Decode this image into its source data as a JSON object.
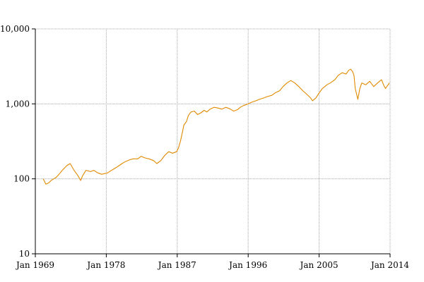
{
  "chart_data": {
    "type": "line",
    "title": "",
    "xlabel": "",
    "ylabel": "",
    "y_scale": "log",
    "ylim": [
      10,
      10000
    ],
    "xlim": [
      "1969-01",
      "2014-01"
    ],
    "grid": true,
    "legend": "none",
    "x_ticks": [
      "Jan 1969",
      "Jan 1978",
      "Jan 1987",
      "Jan 1996",
      "Jan 2005",
      "Jan 2014"
    ],
    "y_ticks": [
      "10",
      "100",
      "1,000",
      "10,000"
    ],
    "y_tick_values": [
      10,
      100,
      1000,
      10000
    ],
    "series": [
      {
        "color": "#e08a00",
        "points": [
          [
            "1970-01",
            100
          ],
          [
            "1970-05",
            85
          ],
          [
            "1970-09",
            88
          ],
          [
            "1971-01",
            95
          ],
          [
            "1971-05",
            100
          ],
          [
            "1971-09",
            105
          ],
          [
            "1972-01",
            115
          ],
          [
            "1972-06",
            130
          ],
          [
            "1973-01",
            150
          ],
          [
            "1973-06",
            160
          ],
          [
            "1973-12",
            130
          ],
          [
            "1974-06",
            110
          ],
          [
            "1974-10",
            95
          ],
          [
            "1975-01",
            110
          ],
          [
            "1975-06",
            130
          ],
          [
            "1976-01",
            125
          ],
          [
            "1976-06",
            130
          ],
          [
            "1976-12",
            120
          ],
          [
            "1977-06",
            115
          ],
          [
            "1978-03",
            120
          ],
          [
            "1978-09",
            130
          ],
          [
            "1979-06",
            145
          ],
          [
            "1980-01",
            160
          ],
          [
            "1980-06",
            170
          ],
          [
            "1981-01",
            180
          ],
          [
            "1981-06",
            185
          ],
          [
            "1982-01",
            185
          ],
          [
            "1982-06",
            200
          ],
          [
            "1982-12",
            190
          ],
          [
            "1983-06",
            185
          ],
          [
            "1984-01",
            175
          ],
          [
            "1984-06",
            160
          ],
          [
            "1984-12",
            175
          ],
          [
            "1985-06",
            205
          ],
          [
            "1985-12",
            230
          ],
          [
            "1986-06",
            220
          ],
          [
            "1986-12",
            230
          ],
          [
            "1987-03",
            260
          ],
          [
            "1987-06",
            320
          ],
          [
            "1987-09",
            420
          ],
          [
            "1987-11",
            520
          ],
          [
            "1988-03",
            580
          ],
          [
            "1988-06",
            700
          ],
          [
            "1988-10",
            780
          ],
          [
            "1989-03",
            800
          ],
          [
            "1989-08",
            720
          ],
          [
            "1990-01",
            760
          ],
          [
            "1990-06",
            820
          ],
          [
            "1990-10",
            780
          ],
          [
            "1991-03",
            850
          ],
          [
            "1991-09",
            900
          ],
          [
            "1992-03",
            880
          ],
          [
            "1992-09",
            850
          ],
          [
            "1993-03",
            900
          ],
          [
            "1993-09",
            860
          ],
          [
            "1994-03",
            800
          ],
          [
            "1994-09",
            840
          ],
          [
            "1995-01",
            900
          ],
          [
            "1995-06",
            950
          ],
          [
            "1996-01",
            1000
          ],
          [
            "1996-06",
            1050
          ],
          [
            "1997-01",
            1100
          ],
          [
            "1997-06",
            1150
          ],
          [
            "1998-01",
            1200
          ],
          [
            "1998-06",
            1250
          ],
          [
            "1999-01",
            1300
          ],
          [
            "1999-06",
            1400
          ],
          [
            "2000-01",
            1500
          ],
          [
            "2000-06",
            1700
          ],
          [
            "2000-12",
            1900
          ],
          [
            "2001-06",
            2050
          ],
          [
            "2001-12",
            1900
          ],
          [
            "2002-06",
            1700
          ],
          [
            "2002-12",
            1500
          ],
          [
            "2003-06",
            1350
          ],
          [
            "2003-12",
            1200
          ],
          [
            "2004-03",
            1100
          ],
          [
            "2004-08",
            1200
          ],
          [
            "2005-01",
            1400
          ],
          [
            "2005-06",
            1600
          ],
          [
            "2006-01",
            1800
          ],
          [
            "2006-06",
            1900
          ],
          [
            "2007-01",
            2100
          ],
          [
            "2007-06",
            2400
          ],
          [
            "2007-12",
            2600
          ],
          [
            "2008-06",
            2500
          ],
          [
            "2008-10",
            2800
          ],
          [
            "2009-01",
            2900
          ],
          [
            "2009-04",
            2700
          ],
          [
            "2009-06",
            2400
          ],
          [
            "2009-08",
            1600
          ],
          [
            "2009-10",
            1350
          ],
          [
            "2009-12",
            1150
          ],
          [
            "2010-03",
            1600
          ],
          [
            "2010-06",
            1900
          ],
          [
            "2010-12",
            1800
          ],
          [
            "2011-06",
            2000
          ],
          [
            "2011-12",
            1700
          ],
          [
            "2012-06",
            1900
          ],
          [
            "2012-12",
            2100
          ],
          [
            "2013-03",
            1800
          ],
          [
            "2013-06",
            1600
          ],
          [
            "2013-09",
            1750
          ],
          [
            "2013-12",
            1900
          ]
        ]
      }
    ]
  }
}
